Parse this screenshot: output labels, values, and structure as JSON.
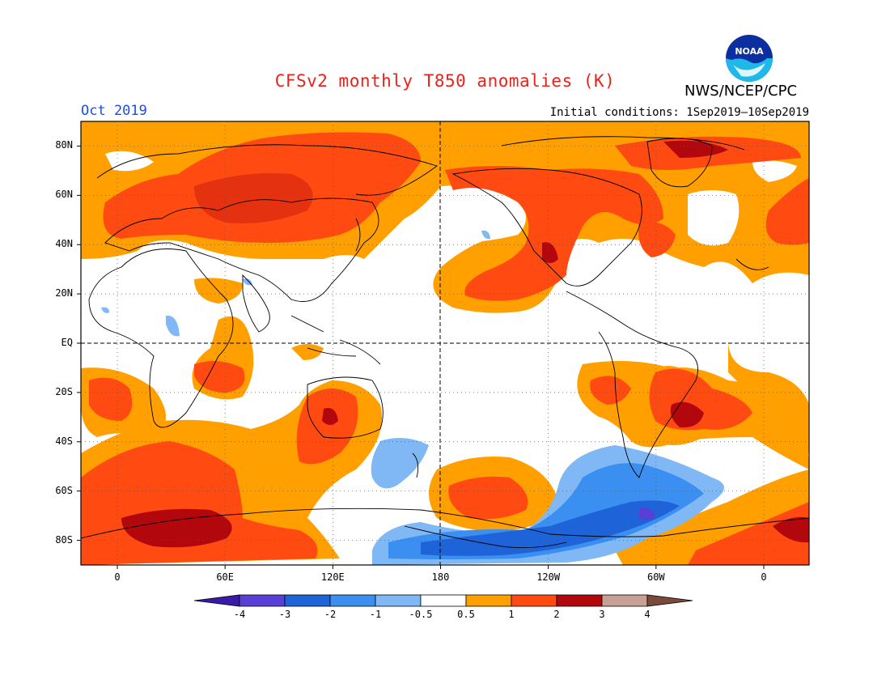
{
  "header": {
    "title": "CFSv2 monthly T850 anomalies (K)",
    "agency": "NWS/NCEP/CPC",
    "logo_text": "NOAA",
    "period": "Oct 2019",
    "initial_conditions": "Initial conditions: 1Sep2019–10Sep2019"
  },
  "axes": {
    "lat_labels": [
      "80N",
      "60N",
      "40N",
      "20N",
      "EQ",
      "20S",
      "40S",
      "60S",
      "80S"
    ],
    "lon_labels": [
      "0",
      "60E",
      "120E",
      "180",
      "120W",
      "60W",
      "0"
    ]
  },
  "colorbar": {
    "labels": [
      "-4",
      "-3",
      "-2",
      "-1",
      "-0.5",
      "0.5",
      "1",
      "2",
      "3",
      "4"
    ],
    "colors": [
      "#3c1aa8",
      "#5a3fd6",
      "#1f63d9",
      "#3a8ff0",
      "#7fb8f5",
      "#ffffff",
      "#ff9f00",
      "#ff4a12",
      "#b3070e",
      "#c7a193",
      "#7a4a3a"
    ]
  },
  "map_colors": {
    "land_outline": "#000000",
    "warm_1": "#ff9f00",
    "warm_2": "#ff4a12",
    "warm_3": "#b3070e",
    "cool_1": "#7fb8f5",
    "cool_2": "#3a8ff0",
    "cool_3": "#1f63d9",
    "cool_4": "#5a3fd6"
  }
}
